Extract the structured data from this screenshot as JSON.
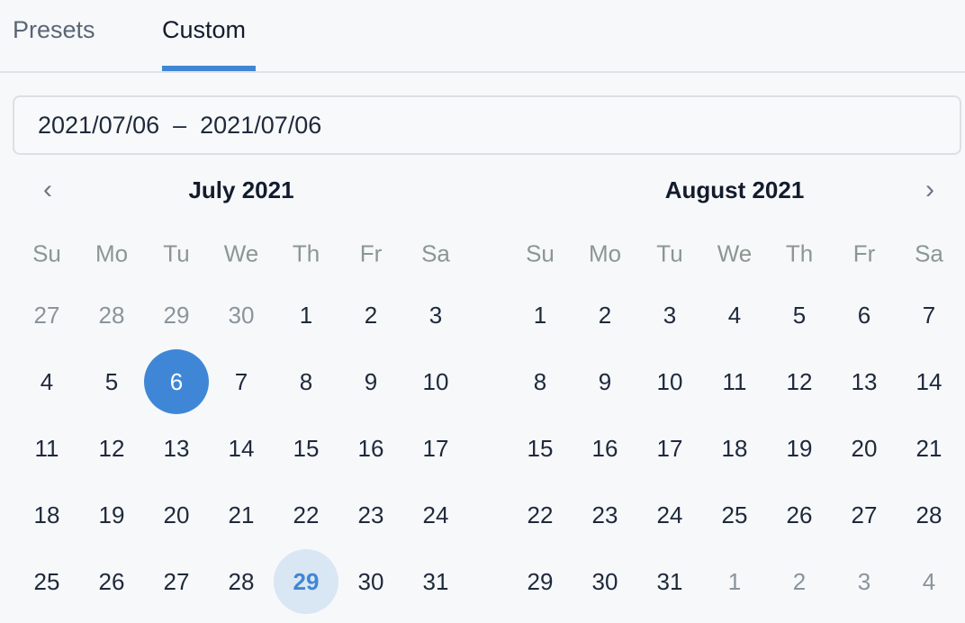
{
  "tabs": [
    {
      "label": "Presets",
      "active": false
    },
    {
      "label": "Custom",
      "active": true
    }
  ],
  "accent": "#3f87d6",
  "range": {
    "value": "2021/07/06  –  2021/07/06"
  },
  "nav": {
    "prev": "‹",
    "next": "›"
  },
  "weekdays": [
    "Su",
    "Mo",
    "Tu",
    "We",
    "Th",
    "Fr",
    "Sa"
  ],
  "months": [
    {
      "title": "July 2021",
      "days": [
        {
          "d": "27",
          "muted": true
        },
        {
          "d": "28",
          "muted": true
        },
        {
          "d": "29",
          "muted": true
        },
        {
          "d": "30",
          "muted": true
        },
        {
          "d": "1"
        },
        {
          "d": "2"
        },
        {
          "d": "3"
        },
        {
          "d": "4"
        },
        {
          "d": "5"
        },
        {
          "d": "6",
          "selected": true
        },
        {
          "d": "7"
        },
        {
          "d": "8"
        },
        {
          "d": "9"
        },
        {
          "d": "10"
        },
        {
          "d": "11"
        },
        {
          "d": "12"
        },
        {
          "d": "13"
        },
        {
          "d": "14"
        },
        {
          "d": "15"
        },
        {
          "d": "16"
        },
        {
          "d": "17"
        },
        {
          "d": "18"
        },
        {
          "d": "19"
        },
        {
          "d": "20"
        },
        {
          "d": "21"
        },
        {
          "d": "22"
        },
        {
          "d": "23"
        },
        {
          "d": "24"
        },
        {
          "d": "25"
        },
        {
          "d": "26"
        },
        {
          "d": "27"
        },
        {
          "d": "28"
        },
        {
          "d": "29",
          "today": true
        },
        {
          "d": "30"
        },
        {
          "d": "31"
        }
      ]
    },
    {
      "title": "August 2021",
      "days": [
        {
          "d": "1"
        },
        {
          "d": "2"
        },
        {
          "d": "3"
        },
        {
          "d": "4"
        },
        {
          "d": "5"
        },
        {
          "d": "6"
        },
        {
          "d": "7"
        },
        {
          "d": "8"
        },
        {
          "d": "9"
        },
        {
          "d": "10"
        },
        {
          "d": "11"
        },
        {
          "d": "12"
        },
        {
          "d": "13"
        },
        {
          "d": "14"
        },
        {
          "d": "15"
        },
        {
          "d": "16"
        },
        {
          "d": "17"
        },
        {
          "d": "18"
        },
        {
          "d": "19"
        },
        {
          "d": "20"
        },
        {
          "d": "21"
        },
        {
          "d": "22"
        },
        {
          "d": "23"
        },
        {
          "d": "24"
        },
        {
          "d": "25"
        },
        {
          "d": "26"
        },
        {
          "d": "27"
        },
        {
          "d": "28"
        },
        {
          "d": "29"
        },
        {
          "d": "30"
        },
        {
          "d": "31"
        },
        {
          "d": "1",
          "muted": true
        },
        {
          "d": "2",
          "muted": true
        },
        {
          "d": "3",
          "muted": true
        },
        {
          "d": "4",
          "muted": true
        }
      ]
    }
  ]
}
